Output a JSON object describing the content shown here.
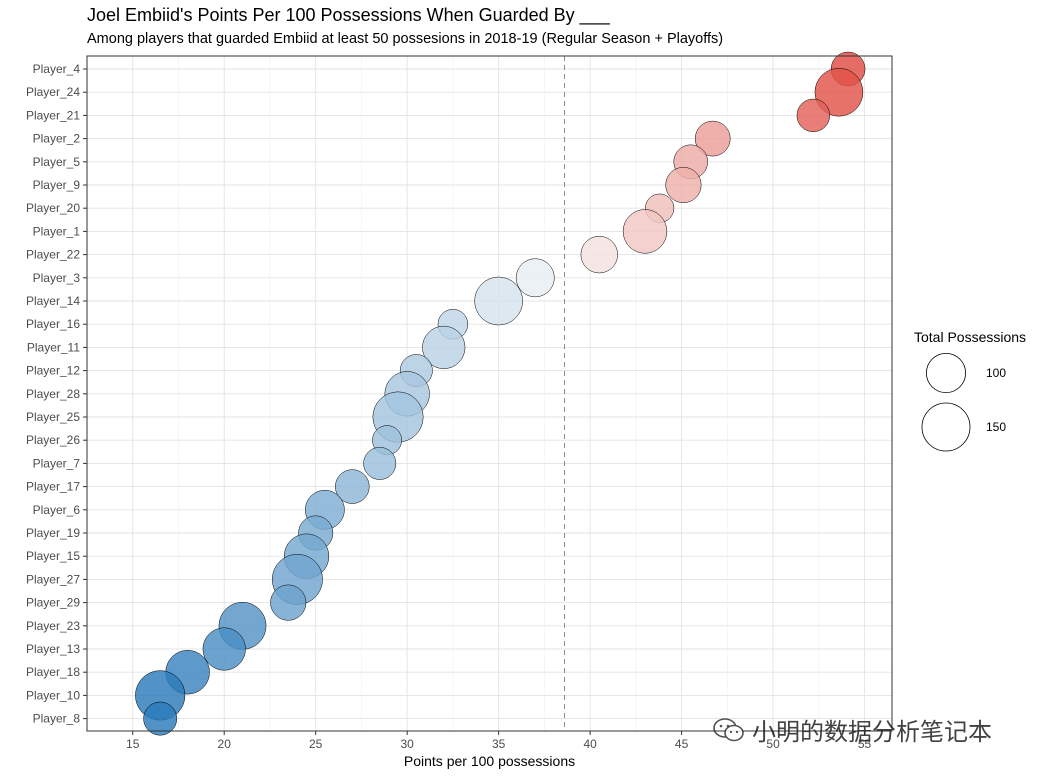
{
  "chart_data": {
    "type": "scatter",
    "title": "Joel Embiid's Points Per 100 Possessions When Guarded By ___",
    "subtitle": "Among players that guarded Embiid at least 50 possesions in 2018-19 (Regular Season + Playoffs)",
    "xlabel": "Points per 100 possessions",
    "ylabel": "",
    "xlim": [
      12.5,
      56.5
    ],
    "x_ticks": [
      15,
      20,
      25,
      30,
      35,
      40,
      45,
      50,
      55
    ],
    "reference_line_x": 38.6,
    "grid": true,
    "legend": {
      "title": "Total Possessions",
      "placement": "right",
      "entries": [
        {
          "label": "100",
          "possessions": 100
        },
        {
          "label": "150",
          "possessions": 150
        }
      ]
    },
    "color_scale": {
      "low": "#2b7bba",
      "mid": "#f7f7f7",
      "high": "#e0493e",
      "midpoint": 38.6
    },
    "points": [
      {
        "player": "Player_4",
        "x": 54.1,
        "possessions": 75
      },
      {
        "player": "Player_24",
        "x": 53.6,
        "possessions": 150
      },
      {
        "player": "Player_21",
        "x": 52.2,
        "possessions": 70
      },
      {
        "player": "Player_2",
        "x": 46.7,
        "possessions": 80
      },
      {
        "player": "Player_5",
        "x": 45.5,
        "possessions": 75
      },
      {
        "player": "Player_9",
        "x": 45.1,
        "possessions": 82
      },
      {
        "player": "Player_20",
        "x": 43.8,
        "possessions": 53
      },
      {
        "player": "Player_1",
        "x": 43.0,
        "possessions": 125
      },
      {
        "player": "Player_22",
        "x": 40.5,
        "possessions": 88
      },
      {
        "player": "Player_3",
        "x": 37.0,
        "possessions": 95
      },
      {
        "player": "Player_14",
        "x": 35.0,
        "possessions": 150
      },
      {
        "player": "Player_16",
        "x": 32.5,
        "possessions": 58
      },
      {
        "player": "Player_11",
        "x": 32.0,
        "possessions": 118
      },
      {
        "player": "Player_12",
        "x": 30.5,
        "possessions": 68
      },
      {
        "player": "Player_28",
        "x": 30.0,
        "possessions": 130
      },
      {
        "player": "Player_25",
        "x": 29.5,
        "possessions": 165
      },
      {
        "player": "Player_26",
        "x": 28.9,
        "possessions": 56
      },
      {
        "player": "Player_7",
        "x": 28.5,
        "possessions": 68
      },
      {
        "player": "Player_17",
        "x": 27.0,
        "possessions": 75
      },
      {
        "player": "Player_6",
        "x": 25.5,
        "possessions": 100
      },
      {
        "player": "Player_19",
        "x": 25.0,
        "possessions": 77
      },
      {
        "player": "Player_15",
        "x": 24.5,
        "possessions": 130
      },
      {
        "player": "Player_27",
        "x": 24.0,
        "possessions": 165
      },
      {
        "player": "Player_29",
        "x": 23.5,
        "possessions": 82
      },
      {
        "player": "Player_23",
        "x": 21.0,
        "possessions": 145
      },
      {
        "player": "Player_13",
        "x": 20.0,
        "possessions": 118
      },
      {
        "player": "Player_18",
        "x": 18.0,
        "possessions": 125
      },
      {
        "player": "Player_10",
        "x": 16.5,
        "possessions": 160
      },
      {
        "player": "Player_8",
        "x": 16.5,
        "possessions": 72
      }
    ]
  },
  "watermark": {
    "text": "小明的数据分析笔记本",
    "icon": "wechat-icon"
  }
}
